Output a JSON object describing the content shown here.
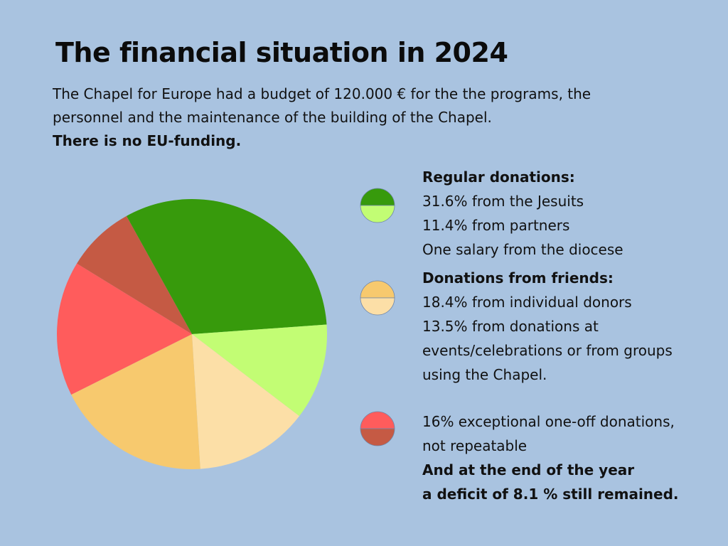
{
  "title": "The financial situation in 2024",
  "intro": {
    "line1": "The Chapel for Europe had a budget of 120.000 € for the the programs, the",
    "line2": "personnel and the maintenance of the building of the Chapel.",
    "bold": "There is no EU-funding."
  },
  "legend": {
    "regular": {
      "heading": "Regular donations:",
      "lines": [
        "31.6% from the Jesuits",
        "11.4% from partners",
        "One salary from the diocese"
      ],
      "colors": [
        "#379a0c",
        "#c2fd74"
      ]
    },
    "friends": {
      "heading": "Donations from friends:",
      "lines": [
        "18.4% from individual donors",
        "13.5% from donations at",
        "events/celebrations or from groups",
        "using the Chapel."
      ],
      "colors": [
        "#f7c96e",
        "#fcdfa7"
      ]
    },
    "exceptional": {
      "lines": [
        "16% exceptional one-off donations,",
        "not repeatable"
      ],
      "bold_lines": [
        "And at the end of the year",
        "a deficit of 8.1 % still remained."
      ],
      "colors": [
        "#ff5c5c",
        "#c55a44"
      ]
    }
  },
  "chart_data": {
    "type": "pie",
    "slices": [
      {
        "label": "Jesuits",
        "value": 31.6,
        "color": "#379a0c"
      },
      {
        "label": "partners",
        "value": 11.4,
        "color": "#c2fd74"
      },
      {
        "label": "donations at events/celebrations or from groups",
        "value": 13.5,
        "color": "#fcdfa7"
      },
      {
        "label": "individual donors",
        "value": 18.4,
        "color": "#f7c96e"
      },
      {
        "label": "exceptional one-off donations",
        "value": 16,
        "color": "#ff5c5c"
      },
      {
        "label": "deficit",
        "value": 8.1,
        "color": "#c55a44"
      }
    ]
  }
}
